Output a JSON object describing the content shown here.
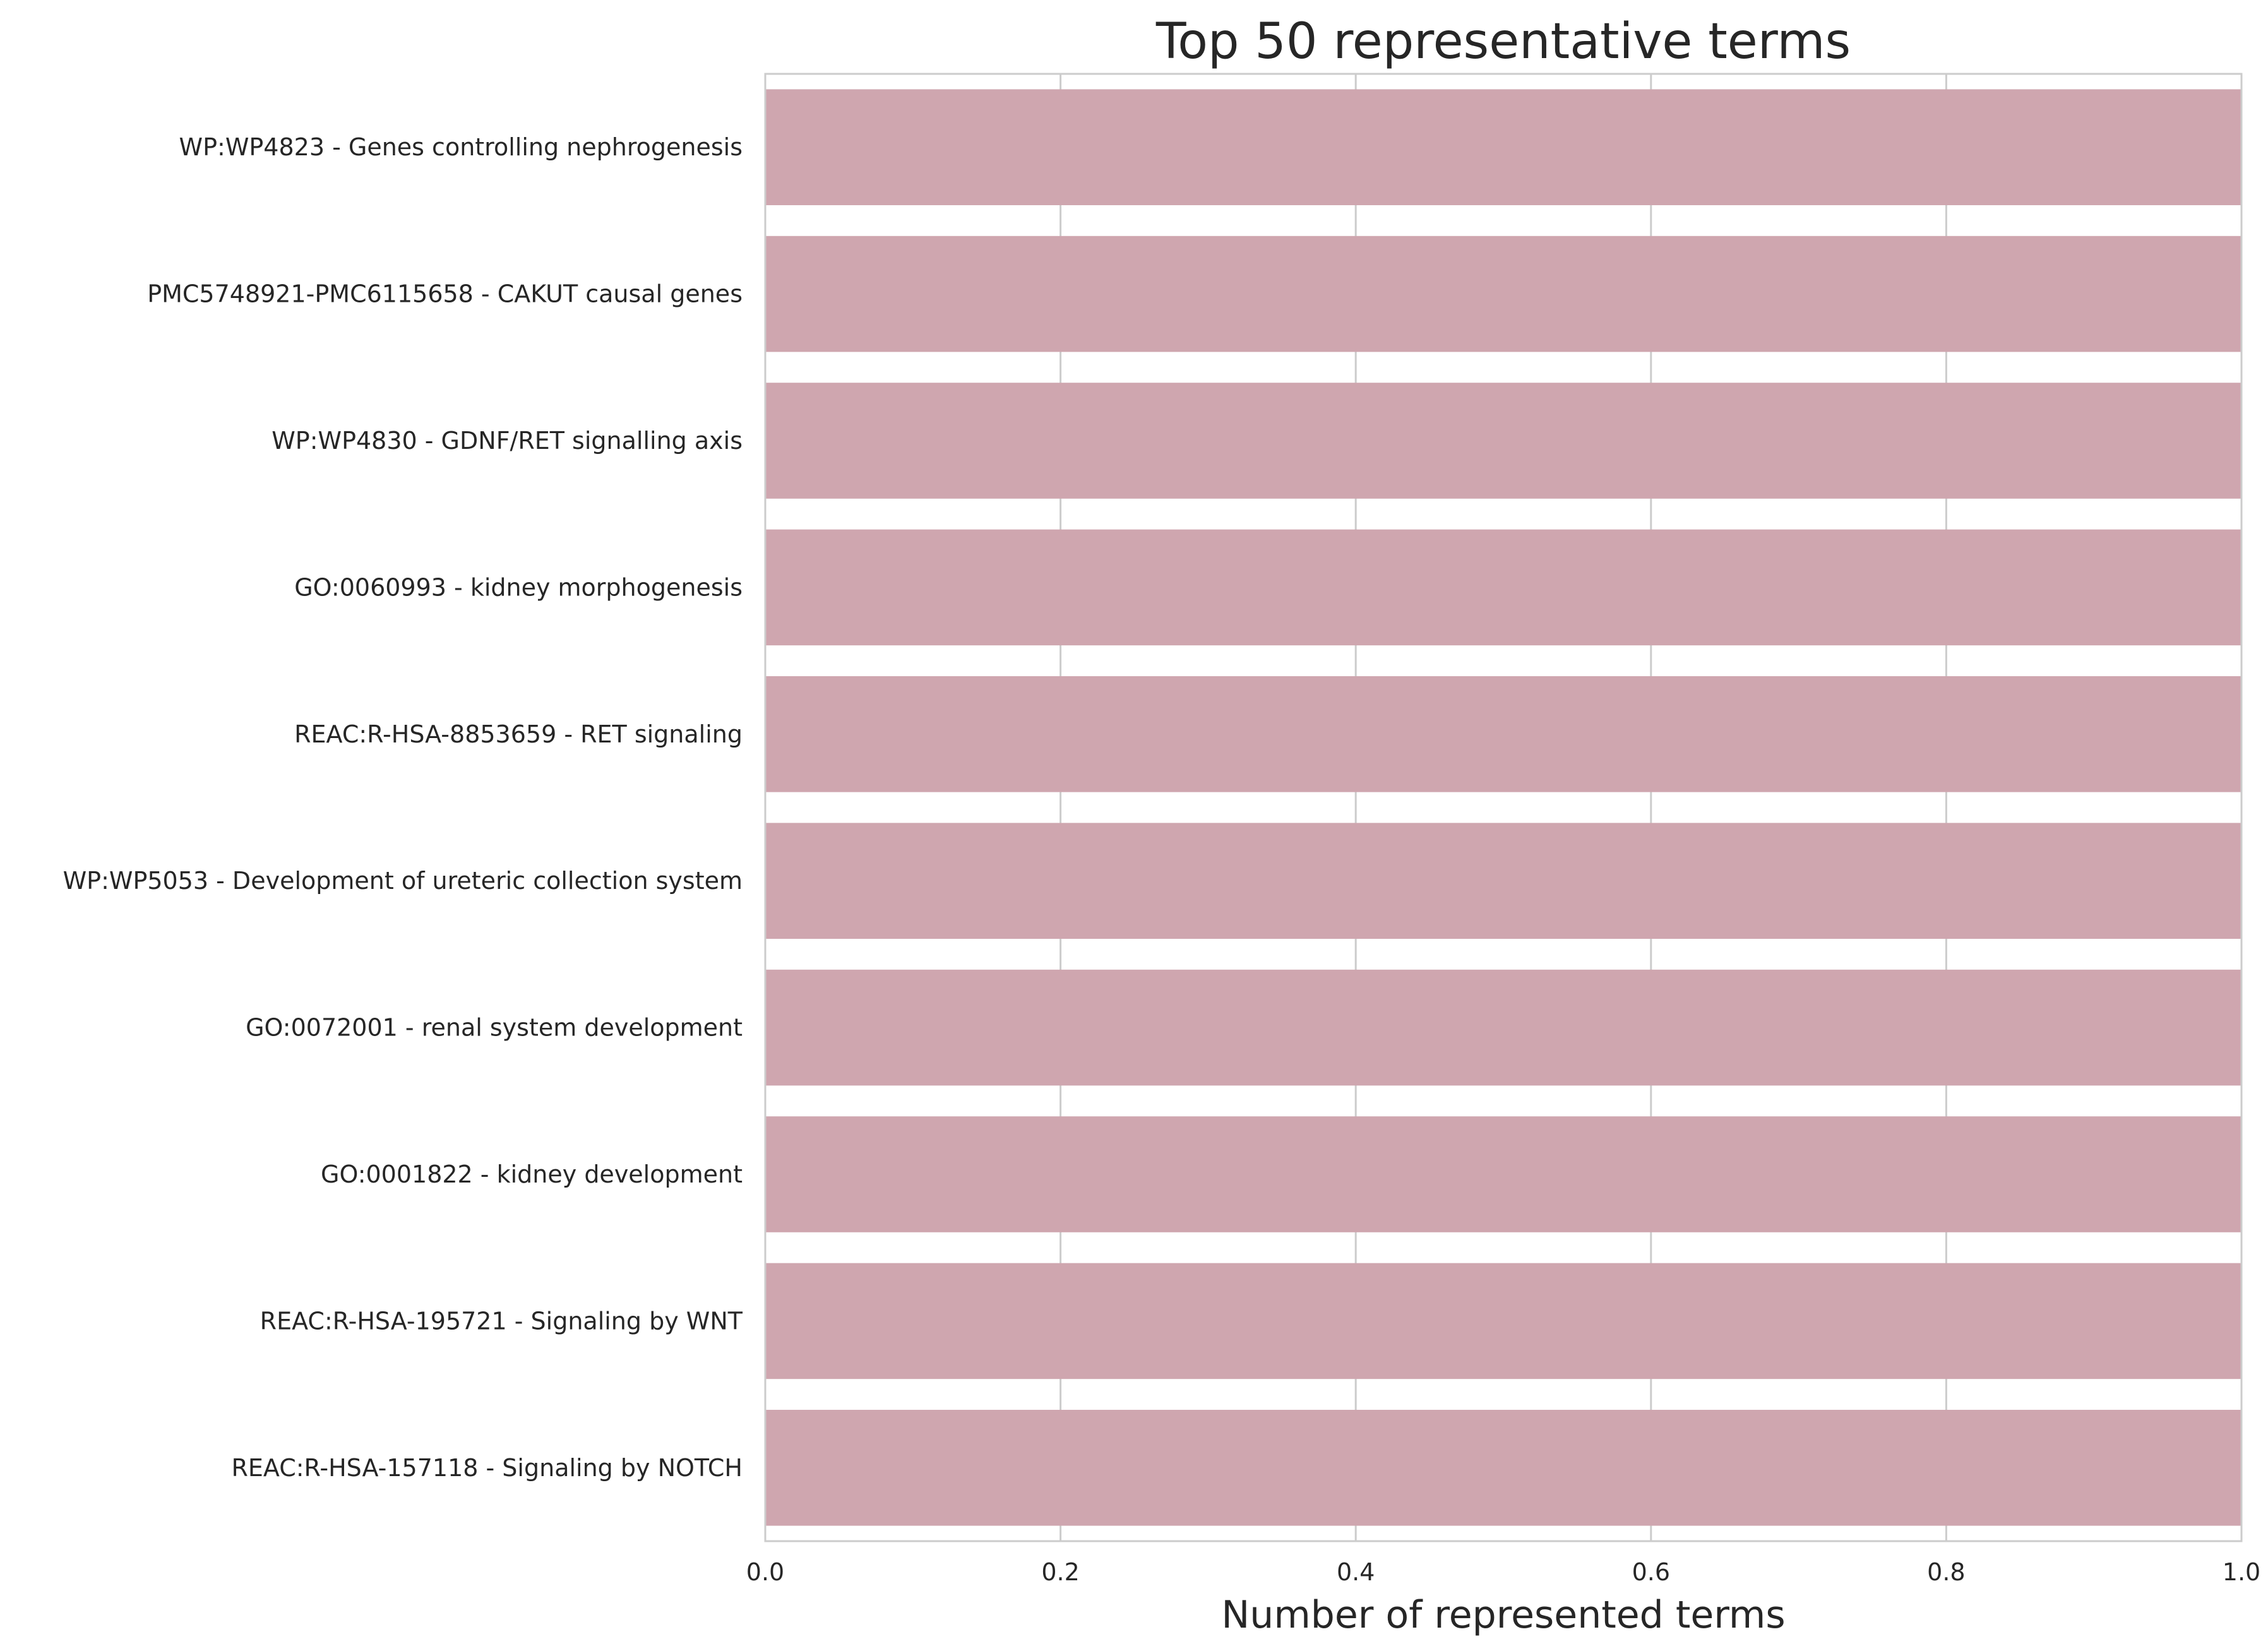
{
  "chart_data": {
    "type": "bar",
    "orientation": "horizontal",
    "title": "Top 50 representative terms",
    "xlabel": "Number of represented terms",
    "ylabel": "",
    "xlim": [
      0.0,
      1.0
    ],
    "xticks": [
      "0.0",
      "0.2",
      "0.4",
      "0.6",
      "0.8",
      "1.0"
    ],
    "grid": true,
    "bar_color": "#cfa6af",
    "categories": [
      "WP:WP4823 - Genes controlling nephrogenesis",
      "PMC5748921-PMC6115658 - CAKUT causal genes",
      "WP:WP4830 - GDNF/RET signalling axis",
      "GO:0060993 - kidney morphogenesis",
      "REAC:R-HSA-8853659 - RET signaling",
      "WP:WP5053 - Development of ureteric collection system",
      "GO:0072001 - renal system development",
      "GO:0001822 - kidney development",
      "REAC:R-HSA-195721 - Signaling by WNT",
      "REAC:R-HSA-157118 - Signaling by NOTCH"
    ],
    "values": [
      1,
      1,
      1,
      1,
      1,
      1,
      1,
      1,
      1,
      1
    ]
  }
}
